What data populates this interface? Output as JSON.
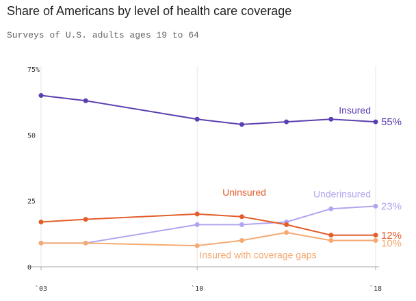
{
  "title": "Share of Americans by level of health care coverage",
  "subtitle": "Surveys of U.S. adults ages 19 to 64",
  "chart_data": {
    "type": "line",
    "title": "Share of Americans by level of health care coverage",
    "subtitle": "Surveys of U.S. adults ages 19 to 64",
    "x": [
      2003,
      2005,
      2010,
      2012,
      2014,
      2016,
      2018
    ],
    "xticks": [
      2003,
      2010,
      2018
    ],
    "xtick_labels": [
      "`03",
      "`10",
      "`18"
    ],
    "xlim": [
      2003,
      2018
    ],
    "ylim": [
      0,
      75
    ],
    "yticks": [
      0,
      25,
      50,
      75
    ],
    "ytick_labels": [
      "0",
      "25",
      "50",
      "75%"
    ],
    "grid": "x-major",
    "series": [
      {
        "name": "Insured",
        "end_label": "55%",
        "color": "#5b3fb0",
        "values": [
          65,
          63,
          56,
          54,
          55,
          56,
          55
        ]
      },
      {
        "name": "Underinsured",
        "end_label": "23%",
        "color": "#b3a4f0",
        "values": [
          9,
          9,
          16,
          16,
          17,
          22,
          23
        ]
      },
      {
        "name": "Uninsured",
        "end_label": "12%",
        "color": "#e35d2b",
        "values": [
          17,
          18,
          20,
          19,
          16,
          12,
          12
        ]
      },
      {
        "name": "Insured with coverage gaps",
        "end_label": "10%",
        "color": "#f4aa72",
        "values": [
          9,
          9,
          8,
          10,
          13,
          10,
          10
        ]
      }
    ]
  }
}
